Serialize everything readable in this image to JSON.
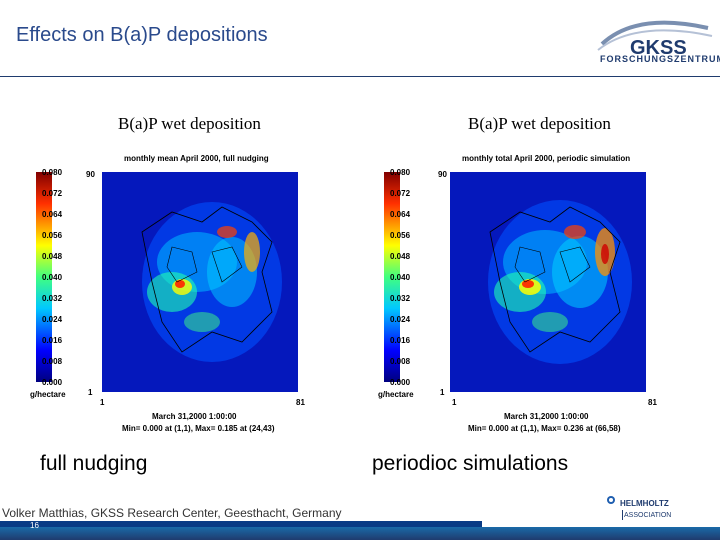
{
  "slide": {
    "title": "Effects on B(a)P depositions",
    "logo_text": "GKSS",
    "logo_sub": "FORSCHUNGSZENTRUM",
    "author": "Volker Matthias, GKSS Research Center, Geesthacht, Germany",
    "page_number": "16",
    "helmholtz_line1": "HELMHOLTZ",
    "helmholtz_line2": "ASSOCIATION",
    "colors": {
      "title": "#2a4a8c",
      "footer_bar": "#0a3b85"
    }
  },
  "panels": [
    {
      "title": "B(a)P wet deposition",
      "subtitle": "monthly mean April 2000, full nudging",
      "colorbar_labels": [
        "0.080",
        "0.072",
        "0.064",
        "0.056",
        "0.048",
        "0.040",
        "0.032",
        "0.024",
        "0.016",
        "0.008",
        "0.000"
      ],
      "units": "g/hectare",
      "axis": {
        "y_top": "90",
        "y_bottom": "1",
        "x_left": "1",
        "x_right": "81"
      },
      "date": "March 31,2000 1:00:00",
      "minmax": "Min= 0.000 at (1,1), Max= 0.185 at (24,43)",
      "caption": "full nudging"
    },
    {
      "title": "B(a)P wet deposition",
      "subtitle": "monthly total April 2000, periodic simulation",
      "colorbar_labels": [
        "0.080",
        "0.072",
        "0.064",
        "0.056",
        "0.048",
        "0.040",
        "0.032",
        "0.024",
        "0.016",
        "0.008",
        "0.000"
      ],
      "units": "g/hectare",
      "axis": {
        "y_top": "90",
        "y_bottom": "1",
        "x_left": "1",
        "x_right": "81"
      },
      "date": "March 31,2000 1:00:00",
      "minmax": "Min= 0.000 at (1,1), Max= 0.236 at (66,58)",
      "caption": "periodioc simulations"
    }
  ]
}
